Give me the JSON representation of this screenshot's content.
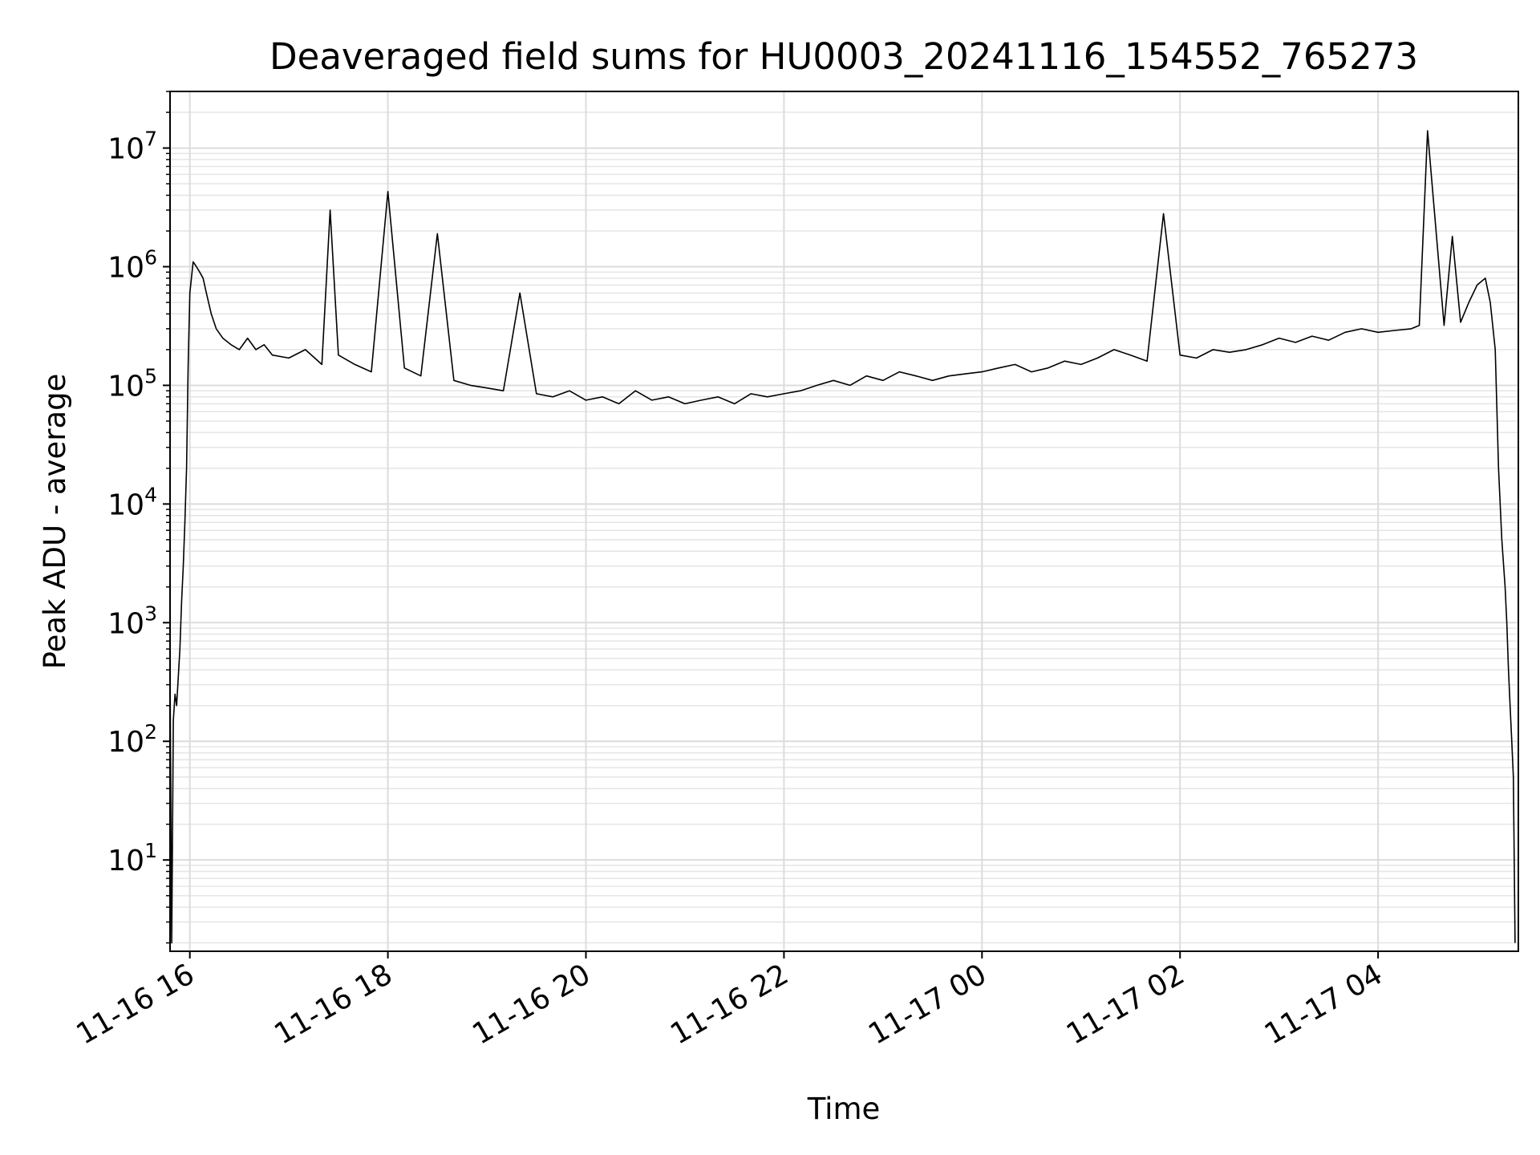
{
  "chart_data": {
    "type": "line",
    "title": "Deaveraged field sums for HU0003_20241116_154552_765273",
    "xlabel": "Time",
    "ylabel": "Peak ADU - average",
    "yscale": "log",
    "ylim": [
      1.7,
      30000000
    ],
    "xlim": [
      "2024-11-16T15:48",
      "2024-11-17T05:25"
    ],
    "grid": true,
    "x_ticks": [
      {
        "value": "2024-11-16T16:00",
        "label": "11-16 16"
      },
      {
        "value": "2024-11-16T18:00",
        "label": "11-16 18"
      },
      {
        "value": "2024-11-16T20:00",
        "label": "11-16 20"
      },
      {
        "value": "2024-11-16T22:00",
        "label": "11-16 22"
      },
      {
        "value": "2024-11-17T00:00",
        "label": "11-17 00"
      },
      {
        "value": "2024-11-17T02:00",
        "label": "11-17 02"
      },
      {
        "value": "2024-11-17T04:00",
        "label": "11-17 04"
      }
    ],
    "y_ticks": [
      {
        "value": 10,
        "base": "10",
        "exp": "1"
      },
      {
        "value": 100,
        "base": "10",
        "exp": "2"
      },
      {
        "value": 1000,
        "base": "10",
        "exp": "3"
      },
      {
        "value": 10000,
        "base": "10",
        "exp": "4"
      },
      {
        "value": 100000,
        "base": "10",
        "exp": "5"
      },
      {
        "value": 1000000,
        "base": "10",
        "exp": "6"
      },
      {
        "value": 10000000,
        "base": "10",
        "exp": "7"
      }
    ],
    "series": [
      {
        "color": "#000000",
        "x": [
          "2024-11-16T15:48",
          "2024-11-16T15:49",
          "2024-11-16T15:50",
          "2024-11-16T15:51",
          "2024-11-16T15:52",
          "2024-11-16T15:53",
          "2024-11-16T15:54",
          "2024-11-16T15:55",
          "2024-11-16T15:56",
          "2024-11-16T15:57",
          "2024-11-16T15:58",
          "2024-11-16T15:59",
          "2024-11-16T16:00",
          "2024-11-16T16:02",
          "2024-11-16T16:04",
          "2024-11-16T16:06",
          "2024-11-16T16:08",
          "2024-11-16T16:10",
          "2024-11-16T16:13",
          "2024-11-16T16:16",
          "2024-11-16T16:20",
          "2024-11-16T16:25",
          "2024-11-16T16:30",
          "2024-11-16T16:35",
          "2024-11-16T16:40",
          "2024-11-16T16:45",
          "2024-11-16T16:50",
          "2024-11-16T17:00",
          "2024-11-16T17:10",
          "2024-11-16T17:20",
          "2024-11-16T17:25",
          "2024-11-16T17:30",
          "2024-11-16T17:40",
          "2024-11-16T17:50",
          "2024-11-16T18:00",
          "2024-11-16T18:10",
          "2024-11-16T18:20",
          "2024-11-16T18:30",
          "2024-11-16T18:40",
          "2024-11-16T18:50",
          "2024-11-16T19:00",
          "2024-11-16T19:10",
          "2024-11-16T19:20",
          "2024-11-16T19:30",
          "2024-11-16T19:40",
          "2024-11-16T19:50",
          "2024-11-16T20:00",
          "2024-11-16T20:10",
          "2024-11-16T20:20",
          "2024-11-16T20:30",
          "2024-11-16T20:40",
          "2024-11-16T20:50",
          "2024-11-16T21:00",
          "2024-11-16T21:10",
          "2024-11-16T21:20",
          "2024-11-16T21:30",
          "2024-11-16T21:40",
          "2024-11-16T21:50",
          "2024-11-16T22:00",
          "2024-11-16T22:10",
          "2024-11-16T22:20",
          "2024-11-16T22:30",
          "2024-11-16T22:40",
          "2024-11-16T22:50",
          "2024-11-16T23:00",
          "2024-11-16T23:10",
          "2024-11-16T23:20",
          "2024-11-16T23:30",
          "2024-11-16T23:40",
          "2024-11-16T23:50",
          "2024-11-17T00:00",
          "2024-11-17T00:10",
          "2024-11-17T00:20",
          "2024-11-17T00:30",
          "2024-11-17T00:40",
          "2024-11-17T00:50",
          "2024-11-17T01:00",
          "2024-11-17T01:10",
          "2024-11-17T01:20",
          "2024-11-17T01:30",
          "2024-11-17T01:40",
          "2024-11-17T01:50",
          "2024-11-17T02:00",
          "2024-11-17T02:10",
          "2024-11-17T02:20",
          "2024-11-17T02:30",
          "2024-11-17T02:40",
          "2024-11-17T02:50",
          "2024-11-17T03:00",
          "2024-11-17T03:10",
          "2024-11-17T03:20",
          "2024-11-17T03:30",
          "2024-11-17T03:40",
          "2024-11-17T03:50",
          "2024-11-17T04:00",
          "2024-11-17T04:10",
          "2024-11-17T04:20",
          "2024-11-17T04:25",
          "2024-11-17T04:30",
          "2024-11-17T04:40",
          "2024-11-17T04:45",
          "2024-11-17T04:50",
          "2024-11-17T04:55",
          "2024-11-17T05:00",
          "2024-11-17T05:05",
          "2024-11-17T05:08",
          "2024-11-17T05:11",
          "2024-11-17T05:13",
          "2024-11-17T05:15",
          "2024-11-17T05:17",
          "2024-11-17T05:18",
          "2024-11-17T05:19",
          "2024-11-17T05:20",
          "2024-11-17T05:21",
          "2024-11-17T05:22",
          "2024-11-17T05:23"
        ],
        "y": [
          400,
          2,
          150,
          250,
          200,
          350,
          600,
          1500,
          3000,
          7000,
          20000,
          150000,
          600000,
          1100000,
          1000000,
          900000,
          800000,
          600000,
          400000,
          300000,
          250000,
          220000,
          200000,
          250000,
          200000,
          220000,
          180000,
          170000,
          200000,
          150000,
          3000000,
          180000,
          150000,
          130000,
          4300000,
          140000,
          120000,
          1900000,
          110000,
          100000,
          95000,
          90000,
          600000,
          85000,
          80000,
          90000,
          75000,
          80000,
          70000,
          90000,
          75000,
          80000,
          70000,
          75000,
          80000,
          70000,
          85000,
          80000,
          85000,
          90000,
          100000,
          110000,
          100000,
          120000,
          110000,
          130000,
          120000,
          110000,
          120000,
          125000,
          130000,
          140000,
          150000,
          130000,
          140000,
          160000,
          150000,
          170000,
          200000,
          180000,
          160000,
          2800000,
          180000,
          170000,
          200000,
          190000,
          200000,
          220000,
          250000,
          230000,
          260000,
          240000,
          280000,
          300000,
          280000,
          290000,
          300000,
          320000,
          14000000,
          320000,
          1800000,
          340000,
          500000,
          700000,
          800000,
          500000,
          200000,
          20000,
          5000,
          2000,
          1000,
          400,
          200,
          100,
          50,
          2
        ]
      }
    ]
  }
}
